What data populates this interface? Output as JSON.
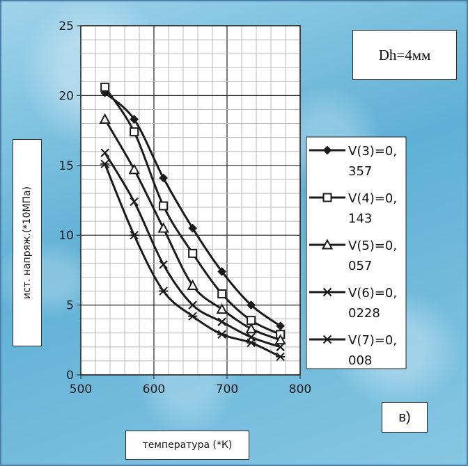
{
  "chart_data": {
    "type": "line",
    "xlabel": "температура (*К)",
    "ylabel": "ист. напряж.(*10МПа)",
    "xlim": [
      500,
      800
    ],
    "ylim": [
      0,
      25
    ],
    "xticks": [
      500,
      600,
      700,
      800
    ],
    "yticks": [
      0,
      5,
      10,
      15,
      20,
      25
    ],
    "grid": true,
    "legend_position": "right",
    "x": [
      533,
      573,
      613,
      653,
      693,
      733,
      773
    ],
    "series": [
      {
        "name": "V(3)=0,357",
        "legend_lines": [
          "V(3)=0,",
          "357"
        ],
        "marker": "diamond",
        "values": [
          20.2,
          18.3,
          14.1,
          10.5,
          7.4,
          5.0,
          3.5
        ]
      },
      {
        "name": "V(4)=0,143",
        "legend_lines": [
          "V(4)=0,",
          "143"
        ],
        "marker": "square",
        "values": [
          20.6,
          17.4,
          12.1,
          8.7,
          5.8,
          3.9,
          2.9
        ]
      },
      {
        "name": "V(5)=0,057",
        "legend_lines": [
          "V(5)=0,",
          "057"
        ],
        "marker": "triangle",
        "values": [
          18.3,
          14.7,
          10.5,
          6.4,
          4.7,
          3.3,
          2.5
        ]
      },
      {
        "name": "V(6)=0,0228",
        "legend_lines": [
          "V(6)=0,",
          "0228"
        ],
        "marker": "x",
        "values": [
          15.9,
          12.4,
          7.9,
          5.0,
          3.8,
          2.7,
          2.0
        ]
      },
      {
        "name": "V(7)=0,008",
        "legend_lines": [
          "V(7)=0,",
          "008"
        ],
        "marker": "star",
        "values": [
          15.1,
          10.0,
          6.0,
          4.2,
          2.9,
          2.3,
          1.3
        ]
      }
    ],
    "line_color": "#1a1a1a"
  },
  "annotations": {
    "note": "Dh=4мм",
    "panel_label": "в)"
  }
}
